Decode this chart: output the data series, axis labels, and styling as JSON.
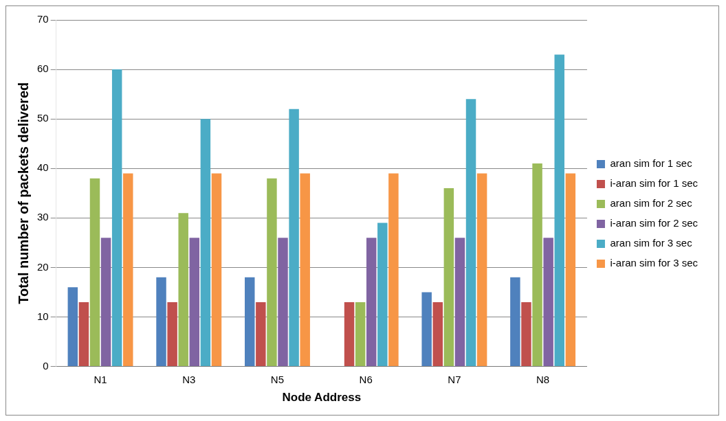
{
  "chart_data": {
    "type": "bar",
    "xlabel": "Node Address",
    "ylabel": "Total number of packets delivered",
    "categories": [
      "N1",
      "N3",
      "N5",
      "N6",
      "N7",
      "N8"
    ],
    "series": [
      {
        "name": "aran sim for 1 sec",
        "color": "#4f81bd",
        "values": [
          16,
          18,
          18,
          0,
          15,
          18
        ]
      },
      {
        "name": "i-aran sim for 1 sec",
        "color": "#c0504d",
        "values": [
          13,
          13,
          13,
          13,
          13,
          13
        ]
      },
      {
        "name": "aran sim for 2 sec",
        "color": "#9bbb59",
        "values": [
          38,
          31,
          38,
          13,
          36,
          41
        ]
      },
      {
        "name": "i-aran sim for 2 sec",
        "color": "#8064a2",
        "values": [
          26,
          26,
          26,
          26,
          26,
          26
        ]
      },
      {
        "name": "aran sim for 3 sec",
        "color": "#4bacc6",
        "values": [
          60,
          50,
          52,
          29,
          54,
          63
        ]
      },
      {
        "name": "i-aran sim for 3 sec",
        "color": "#f79646",
        "values": [
          39,
          39,
          39,
          39,
          39,
          39
        ]
      }
    ],
    "ylim": [
      0,
      70
    ],
    "yticks": [
      0,
      10,
      20,
      30,
      40,
      50,
      60,
      70
    ],
    "grid": "y",
    "legend": "right"
  }
}
